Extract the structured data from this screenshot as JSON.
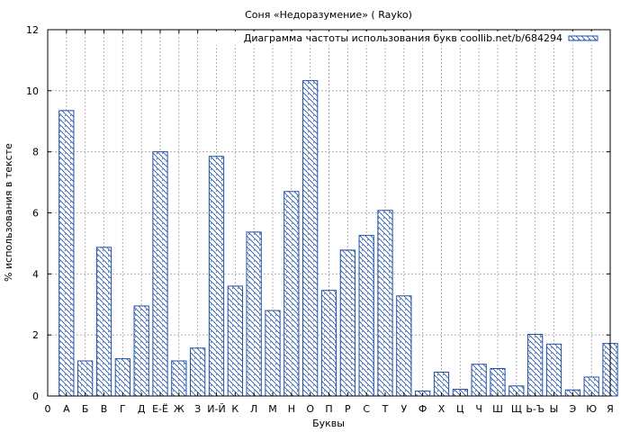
{
  "chart_data": {
    "type": "bar",
    "title": "Соня «Недоразумение» ( Rayko)",
    "xlabel": "Буквы",
    "ylabel": "% использования в тексте",
    "legend": {
      "label": "Диаграмма частоты использования букв coollib.net/b/684294",
      "placement": "top-right"
    },
    "ylim": [
      0,
      12
    ],
    "yticks": [
      0,
      2,
      4,
      6,
      8,
      10,
      12
    ],
    "grid": true,
    "x_tick_labels": [
      "0",
      "А",
      "Б",
      "В",
      "Г",
      "Д",
      "Е-Ё",
      "Ж",
      "З",
      "И-Й",
      "К",
      "Л",
      "М",
      "Н",
      "О",
      "П",
      "Р",
      "С",
      "Т",
      "У",
      "Ф",
      "Х",
      "Ц",
      "Ч",
      "Ш",
      "Щ",
      "Ь-Ъ",
      "Ы",
      "Э",
      "Ю",
      "Я"
    ],
    "categories": [
      "А",
      "Б",
      "В",
      "Г",
      "Д",
      "Е-Ё",
      "Ж",
      "З",
      "И-Й",
      "К",
      "Л",
      "М",
      "Н",
      "О",
      "П",
      "Р",
      "С",
      "Т",
      "У",
      "Ф",
      "Х",
      "Ц",
      "Ч",
      "Ш",
      "Щ",
      "Ь-Ъ",
      "Ы",
      "Э",
      "Ю",
      "Я"
    ],
    "values": [
      9.35,
      1.15,
      4.87,
      1.22,
      2.95,
      8.0,
      1.15,
      1.57,
      7.85,
      3.6,
      5.37,
      2.8,
      6.7,
      10.33,
      3.46,
      4.78,
      5.26,
      6.08,
      3.28,
      0.16,
      0.78,
      0.22,
      1.04,
      0.9,
      0.33,
      2.02,
      1.7,
      0.2,
      0.62,
      1.72
    ],
    "colors": {
      "bar_stroke": "#1f4fa3",
      "hatch": "#1f4fa3",
      "grid": "#a0a0a0"
    }
  }
}
